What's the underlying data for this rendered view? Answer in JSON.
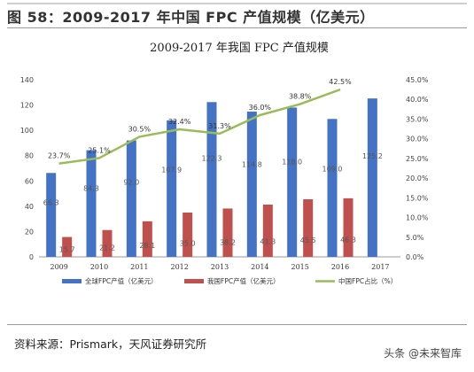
{
  "figure_title": "图 58：2009-2017 年中国 FPC 产值规模（亿美元）",
  "source": "资料来源：Prismark，天风证券研究所",
  "watermark": "头条 @未来智库",
  "chart_data": {
    "type": "bar",
    "title": "2009-2017 年我国 FPC 产值规模",
    "categories": [
      "2009",
      "2010",
      "2011",
      "2012",
      "2013",
      "2014",
      "2015",
      "2016",
      "2017"
    ],
    "series": [
      {
        "name": "全球FPC产值（亿美元）",
        "type": "bar",
        "axis": "left",
        "color": "#4472C4",
        "values": [
          66.3,
          84.3,
          92.0,
          107.9,
          122.3,
          114.8,
          118.0,
          109.0,
          125.2
        ],
        "labels": [
          "66.3",
          "84.3",
          "92.0",
          "107.9",
          "122.3",
          "114.8",
          "118.0",
          "109.0",
          "125.2"
        ]
      },
      {
        "name": "我国FPC产值（亿美元）",
        "type": "bar",
        "axis": "left",
        "color": "#C0504D",
        "values": [
          15.7,
          21.2,
          28.1,
          35.0,
          38.2,
          41.3,
          45.5,
          46.3,
          null
        ],
        "labels": [
          "15.7",
          "21.2",
          "28.1",
          "35.0",
          "38.2",
          "41.3",
          "45.5",
          "46.3",
          ""
        ]
      },
      {
        "name": "中国FPC占比（%）",
        "type": "line",
        "axis": "right",
        "color": "#9BBB59",
        "values": [
          23.7,
          25.1,
          30.5,
          32.4,
          31.3,
          36.0,
          38.8,
          42.5,
          null
        ],
        "labels": [
          "23.7%",
          "25.1%",
          "30.5%",
          "32.4%",
          "31.3%",
          "36.0%",
          "38.8%",
          "42.5%",
          ""
        ]
      }
    ],
    "left_axis": {
      "min": 0,
      "max": 140,
      "ticks": [
        "0",
        "20",
        "40",
        "60",
        "80",
        "100",
        "120",
        "140"
      ]
    },
    "right_axis": {
      "min": 0,
      "max": 45,
      "ticks": [
        "0.0%",
        "5.0%",
        "10.0%",
        "15.0%",
        "20.0%",
        "25.0%",
        "30.0%",
        "35.0%",
        "40.0%",
        "45.0%"
      ]
    },
    "grid": false,
    "legend_position": "bottom"
  }
}
